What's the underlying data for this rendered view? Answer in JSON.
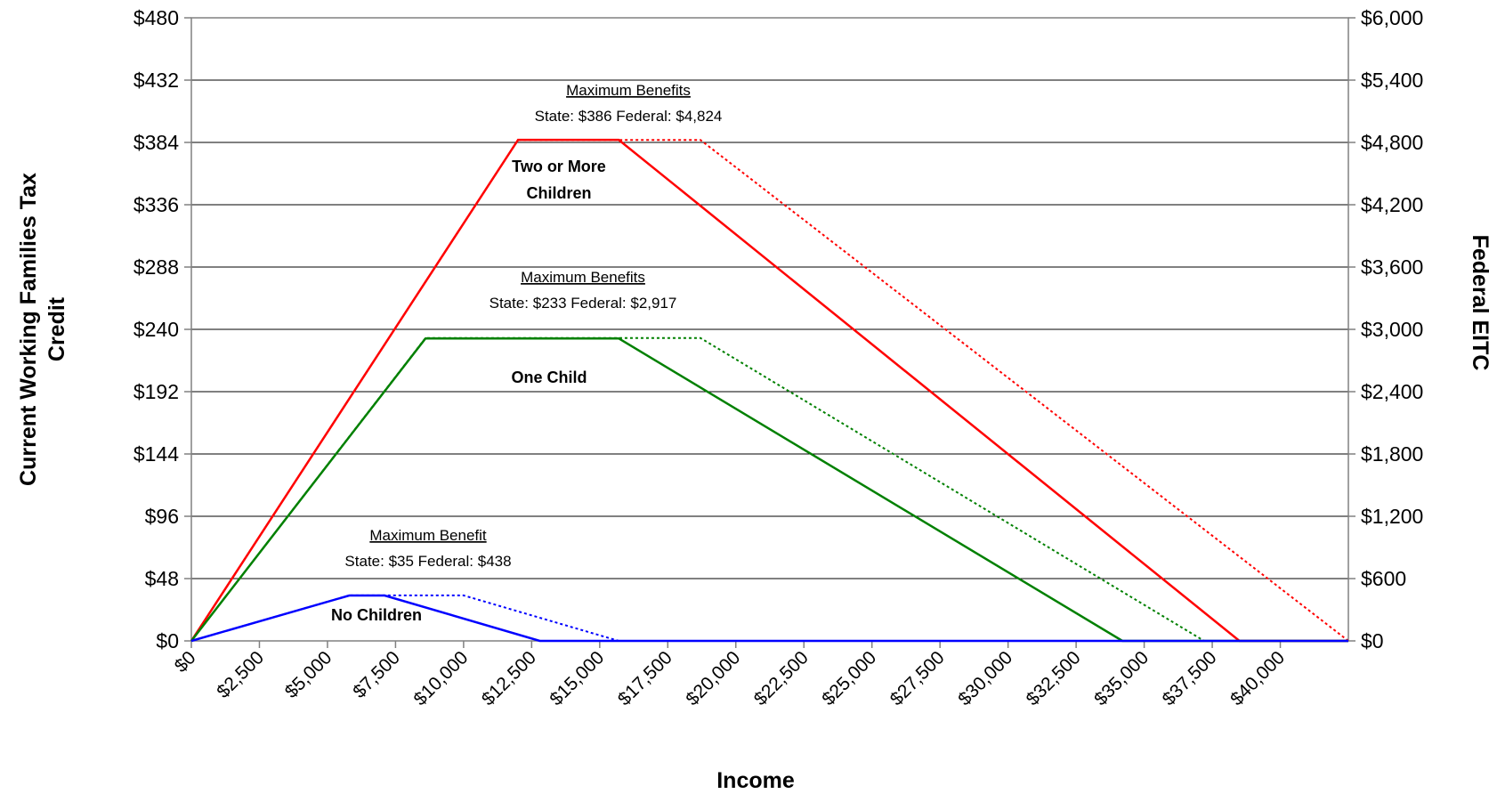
{
  "chart_data": {
    "type": "line",
    "xlabel": "Income",
    "ylabel_left": "Current Working Families Tax Credit",
    "ylabel_right": "Federal EITC",
    "x_range": [
      0,
      42500
    ],
    "x_ticks": [
      0,
      2500,
      5000,
      7500,
      10000,
      12500,
      15000,
      17500,
      20000,
      22500,
      25000,
      27500,
      30000,
      32500,
      35000,
      37500,
      40000
    ],
    "x_tick_labels": [
      "$0",
      "$2,500",
      "$5,000",
      "$7,500",
      "$10,000",
      "$12,500",
      "$15,000",
      "$17,500",
      "$20,000",
      "$22,500",
      "$25,000",
      "$27,500",
      "$30,000",
      "$32,500",
      "$35,000",
      "$37,500",
      "$40,000"
    ],
    "ylim_left": [
      0,
      480
    ],
    "y_ticks_left": [
      0,
      48,
      96,
      144,
      192,
      240,
      288,
      336,
      384,
      432,
      480
    ],
    "y_tick_labels_left": [
      "$0",
      "$48",
      "$96",
      "$144",
      "$192",
      "$240",
      "$288",
      "$336",
      "$384",
      "$432",
      "$480"
    ],
    "ylim_right": [
      0,
      6000
    ],
    "y_ticks_right": [
      0,
      600,
      1200,
      1800,
      2400,
      3000,
      3600,
      4200,
      4800,
      5400,
      6000
    ],
    "y_tick_labels_right": [
      "$0",
      "$600",
      "$1,200",
      "$1,800",
      "$2,400",
      "$3,000",
      "$3,600",
      "$4,200",
      "$4,800",
      "$5,400",
      "$6,000"
    ],
    "grid": "horizontal",
    "series": [
      {
        "name": "Two or More Children",
        "axis": "left",
        "style": "solid",
        "color": "#ff0000",
        "x": [
          0,
          12000,
          15700,
          38500,
          42500
        ],
        "y": [
          0,
          386,
          386,
          0,
          0
        ]
      },
      {
        "name": "Two or More Children",
        "axis": "right",
        "style": "dotted",
        "color": "#ff0000",
        "x": [
          0,
          12000,
          18700,
          42500
        ],
        "y": [
          0,
          4824,
          4824,
          0
        ]
      },
      {
        "name": "One Child",
        "axis": "left",
        "style": "solid",
        "color": "#008000",
        "x": [
          0,
          8600,
          15700,
          34200,
          42500
        ],
        "y": [
          0,
          233,
          233,
          0,
          0
        ]
      },
      {
        "name": "One Child",
        "axis": "right",
        "style": "dotted",
        "color": "#008000",
        "x": [
          0,
          8600,
          18700,
          37200,
          42500
        ],
        "y": [
          0,
          2917,
          2917,
          0,
          0
        ]
      },
      {
        "name": "No Children",
        "axis": "left",
        "style": "solid",
        "color": "#0000ff",
        "x": [
          0,
          5800,
          7100,
          12800,
          42500
        ],
        "y": [
          0,
          35,
          35,
          0,
          0
        ]
      },
      {
        "name": "No Children",
        "axis": "right",
        "style": "dotted",
        "color": "#0000ff",
        "x": [
          0,
          5800,
          10000,
          15700,
          42500
        ],
        "y": [
          0,
          438,
          438,
          0,
          0
        ]
      }
    ],
    "annotations": [
      {
        "heading": "Maximum Benefits",
        "text": "State: $386  Federal: $4,824"
      },
      {
        "heading": "Maximum Benefits",
        "text": "State: $233 Federal: $2,917"
      },
      {
        "heading": "Maximum Benefit",
        "text": "State: $35  Federal: $438"
      }
    ],
    "series_labels": [
      "Two or More",
      "Children",
      "One Child",
      "No Children"
    ]
  }
}
